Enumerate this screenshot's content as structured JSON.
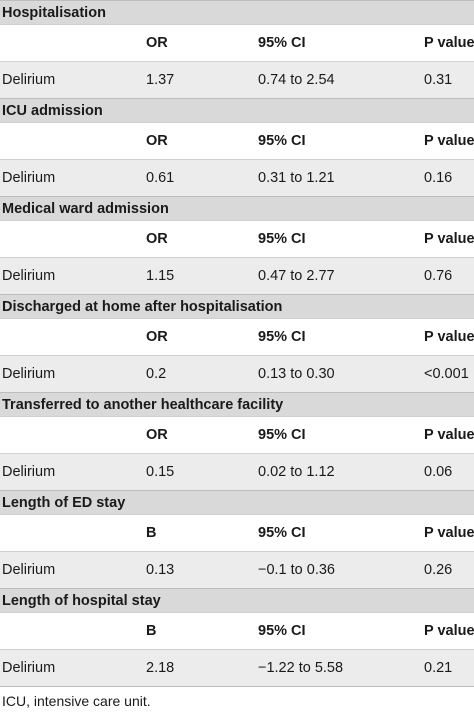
{
  "sections": [
    {
      "title": "Hospitalisation",
      "headers": [
        "",
        "OR",
        "95% CI",
        "P value"
      ],
      "row": [
        "Delirium",
        "1.37",
        "0.74 to 2.54",
        "0.31"
      ]
    },
    {
      "title": "ICU admission",
      "headers": [
        "",
        "OR",
        "95% CI",
        "P value"
      ],
      "row": [
        "Delirium",
        "0.61",
        "0.31 to 1.21",
        "0.16"
      ]
    },
    {
      "title": "Medical ward admission",
      "headers": [
        "",
        "OR",
        "95% CI",
        "P value"
      ],
      "row": [
        "Delirium",
        "1.15",
        "0.47 to 2.77",
        "0.76"
      ]
    },
    {
      "title": "Discharged at home after hospitalisation",
      "headers": [
        "",
        "OR",
        "95% CI",
        "P value"
      ],
      "row": [
        "Delirium",
        "0.2",
        "0.13 to 0.30",
        "<0.001"
      ]
    },
    {
      "title": "Transferred to another healthcare facility",
      "headers": [
        "",
        "OR",
        "95% CI",
        "P value"
      ],
      "row": [
        "Delirium",
        "0.15",
        "0.02 to 1.12",
        "0.06"
      ]
    },
    {
      "title": "Length of ED stay",
      "headers": [
        "",
        "B",
        "95% CI",
        "P value"
      ],
      "row": [
        "Delirium",
        "0.13",
        "−0.1 to 0.36",
        "0.26"
      ]
    },
    {
      "title": "Length of hospital stay",
      "headers": [
        "",
        "B",
        "95% CI",
        "P value"
      ],
      "row": [
        "Delirium",
        "2.18",
        "−1.22 to 5.58",
        "0.21"
      ]
    }
  ],
  "footnote": "ICU, intensive care unit."
}
